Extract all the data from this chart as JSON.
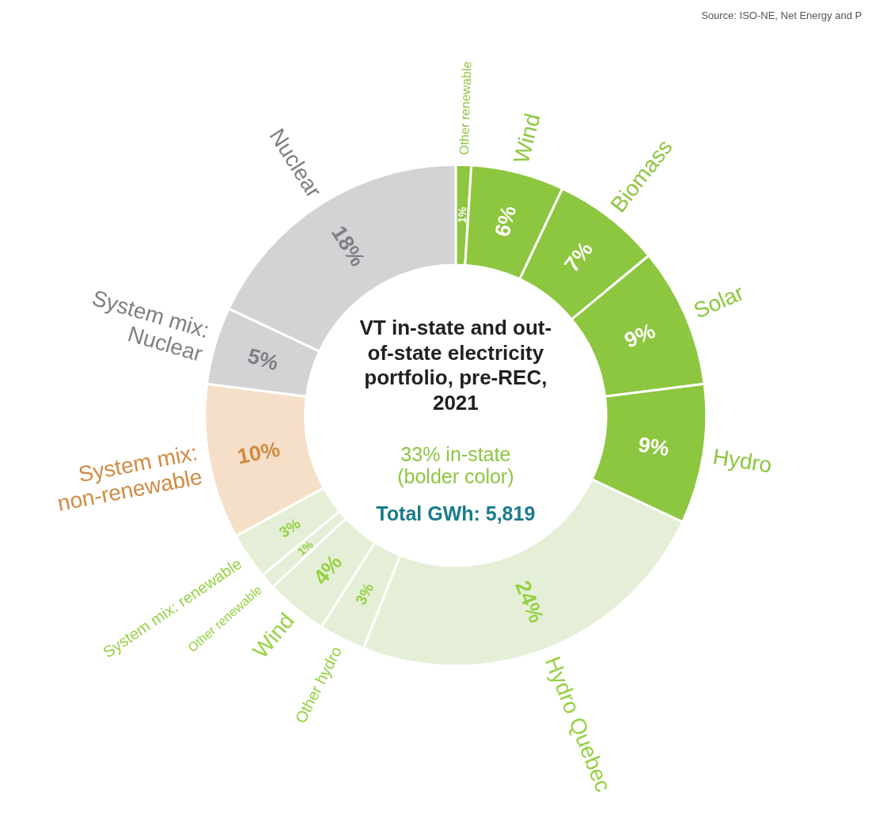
{
  "chart_data": {
    "type": "donut",
    "title": "VT in-state and out-of-state electricity portfolio, pre-REC, 2021",
    "annotations": [
      "33% in-state (bolder color)",
      "Total GWh: 5,819",
      "Source: ISO-NE, Net Energy and P"
    ],
    "categories": [
      "Other renewable",
      "Wind",
      "Biomass",
      "Solar",
      "Hydro",
      "Hydro Quebec",
      "Other hydro",
      "Wind",
      "Other renewable",
      "System mix: renewable",
      "System mix: non-renewable",
      "System mix: Nuclear",
      "Nuclear"
    ],
    "values": [
      1,
      6,
      7,
      9,
      9,
      24,
      3,
      4,
      1,
      3,
      10,
      5,
      18
    ],
    "value_labels": [
      "1%",
      "6%",
      "7%",
      "9%",
      "9%",
      "24%",
      "3%",
      "4%",
      "1%",
      "3%",
      "10%",
      "5%",
      "18%"
    ],
    "colors": [
      "#8dc63f",
      "#8dc63f",
      "#8dc63f",
      "#8dc63f",
      "#8dc63f",
      "#e5efd7",
      "#e5efd7",
      "#e5efd7",
      "#e5efd7",
      "#e5efd7",
      "#f6dfc8",
      "#d1d3d4",
      "#d1d3d4"
    ]
  }
}
